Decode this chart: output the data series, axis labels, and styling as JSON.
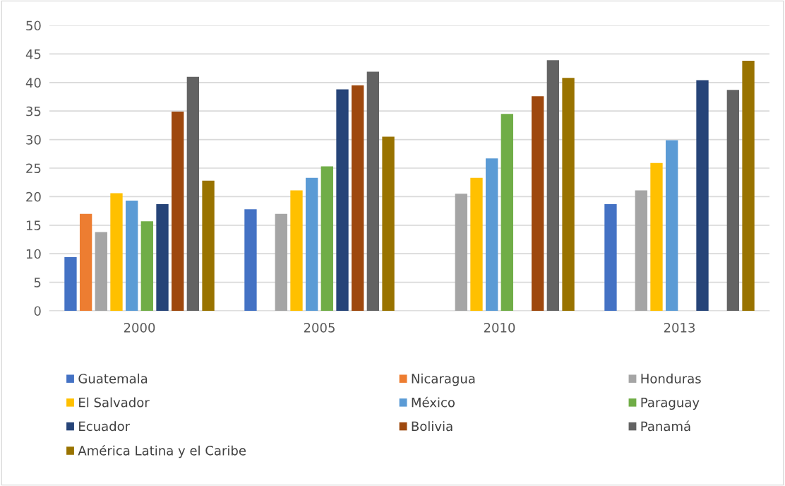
{
  "chart_data": {
    "type": "bar",
    "categories": [
      "2000",
      "2005",
      "2010",
      "2013"
    ],
    "series": [
      {
        "name": "Guatemala",
        "color": "#4472c4",
        "values": [
          9.4,
          17.8,
          null,
          18.7
        ]
      },
      {
        "name": "Nicaragua",
        "color": "#ed7d31",
        "values": [
          17.0,
          null,
          null,
          null
        ]
      },
      {
        "name": "Honduras",
        "color": "#a5a5a5",
        "values": [
          13.8,
          17.0,
          20.5,
          21.1
        ]
      },
      {
        "name": "El Salvador",
        "color": "#ffc000",
        "values": [
          20.6,
          21.1,
          23.3,
          25.9
        ]
      },
      {
        "name": "México",
        "color": "#5b9bd5",
        "values": [
          19.3,
          23.3,
          26.7,
          29.9
        ]
      },
      {
        "name": "Paraguay",
        "color": "#70ad47",
        "values": [
          15.7,
          25.3,
          34.5,
          null
        ]
      },
      {
        "name": "Ecuador",
        "color": "#264478",
        "values": [
          18.7,
          38.8,
          null,
          40.4
        ]
      },
      {
        "name": "Bolivia",
        "color": "#9e480e",
        "values": [
          34.9,
          39.5,
          37.6,
          null
        ]
      },
      {
        "name": "Panamá",
        "color": "#636363",
        "values": [
          41.0,
          41.9,
          43.9,
          38.7
        ]
      },
      {
        "name": "América Latina y el Caribe",
        "color": "#997300",
        "values": [
          22.8,
          30.5,
          40.8,
          43.8
        ]
      }
    ],
    "ylim": [
      0,
      50
    ],
    "yticks": [
      0,
      5,
      10,
      15,
      20,
      25,
      30,
      35,
      40,
      45,
      50
    ],
    "grid": "y",
    "legend": "bottom"
  }
}
